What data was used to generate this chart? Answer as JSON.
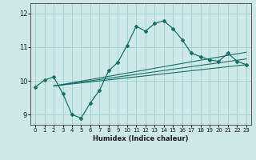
{
  "xlabel": "Humidex (Indice chaleur)",
  "background_color": "#cce9e8",
  "grid_color": "#a0cece",
  "line_color": "#1a6e63",
  "xlim": [
    -0.5,
    23.5
  ],
  "ylim": [
    8.7,
    12.3
  ],
  "yticks": [
    9,
    10,
    11,
    12
  ],
  "xticks": [
    0,
    1,
    2,
    3,
    4,
    5,
    6,
    7,
    8,
    9,
    10,
    11,
    12,
    13,
    14,
    15,
    16,
    17,
    18,
    19,
    20,
    21,
    22,
    23
  ],
  "series1_x": [
    0,
    1,
    2,
    3,
    4,
    5,
    6,
    7,
    8,
    9,
    10,
    11,
    12,
    13,
    14,
    15,
    16,
    17,
    18,
    19,
    20,
    21,
    22,
    23
  ],
  "series1_y": [
    9.82,
    10.02,
    10.12,
    9.62,
    9.0,
    8.9,
    9.35,
    9.72,
    10.3,
    10.55,
    11.05,
    11.62,
    11.47,
    11.7,
    11.78,
    11.55,
    11.22,
    10.82,
    10.72,
    10.62,
    10.58,
    10.82,
    10.58,
    10.48
  ],
  "line1_x": [
    2,
    23
  ],
  "line1_y": [
    9.85,
    10.85
  ],
  "line2_x": [
    2,
    23
  ],
  "line2_y": [
    9.85,
    10.65
  ],
  "line3_x": [
    2,
    23
  ],
  "line3_y": [
    9.85,
    10.48
  ]
}
